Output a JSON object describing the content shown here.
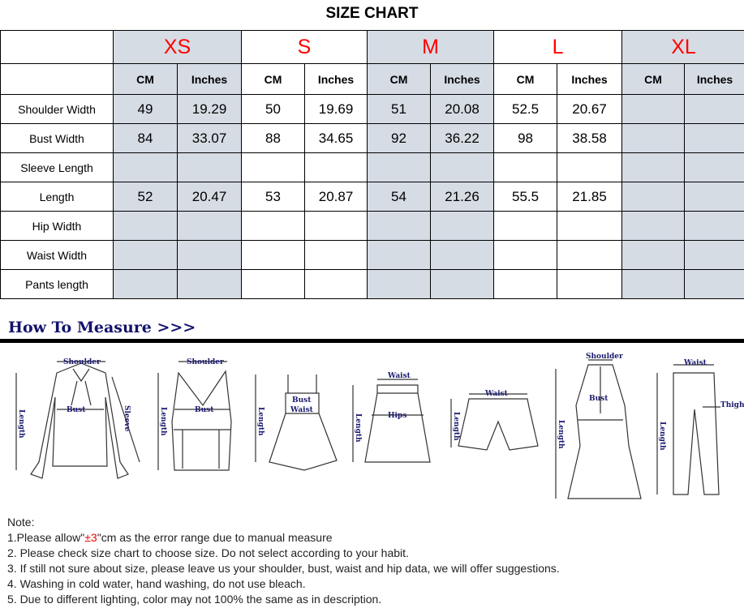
{
  "title": "SIZE CHART",
  "sizes": [
    "XS",
    "S",
    "M",
    "L",
    "XL"
  ],
  "units": [
    "CM",
    "Inches"
  ],
  "rows": [
    {
      "label": "Shoulder Width",
      "values": [
        "49",
        "19.29",
        "50",
        "19.69",
        "51",
        "20.08",
        "52.5",
        "20.67",
        "",
        ""
      ]
    },
    {
      "label": "Bust Width",
      "values": [
        "84",
        "33.07",
        "88",
        "34.65",
        "92",
        "36.22",
        "98",
        "38.58",
        "",
        ""
      ]
    },
    {
      "label": "Sleeve Length",
      "values": [
        "",
        "",
        "",
        "",
        "",
        "",
        "",
        "",
        "",
        ""
      ]
    },
    {
      "label": "Length",
      "values": [
        "52",
        "20.47",
        "53",
        "20.87",
        "54",
        "21.26",
        "55.5",
        "21.85",
        "",
        ""
      ]
    },
    {
      "label": "Hip Width",
      "values": [
        "",
        "",
        "",
        "",
        "",
        "",
        "",
        "",
        "",
        ""
      ]
    },
    {
      "label": "Waist Width",
      "values": [
        "",
        "",
        "",
        "",
        "",
        "",
        "",
        "",
        "",
        ""
      ]
    },
    {
      "label": "Pants length",
      "values": [
        "",
        "",
        "",
        "",
        "",
        "",
        "",
        "",
        "",
        ""
      ]
    }
  ],
  "how_to_measure": "How To Measure >>>",
  "figures": {
    "shirt": {
      "shoulder": "Shoulder",
      "bust": "Bust",
      "sleeve": "Sleeve",
      "length": "Length"
    },
    "top": {
      "shoulder": "Shoulder",
      "bust": "Bust",
      "length": "Length"
    },
    "dress": {
      "bust": "Bust",
      "waist": "Waist",
      "length": "Length"
    },
    "skirt": {
      "waist": "Waist",
      "hips": "Hips",
      "length": "Length"
    },
    "shorts": {
      "waist": "Waist",
      "length": "Length"
    },
    "coat": {
      "shoulder": "Shoulder",
      "bust": "Bust",
      "length": "Length"
    },
    "pants": {
      "waist": "Waist",
      "thigh": "Thigh",
      "length": "Length"
    }
  },
  "notes": {
    "heading": "Note:",
    "n1_pre": "1.Please allow\"",
    "n1_red": "±3",
    "n1_post": "\"cm as the error range due to manual measure",
    "n2": "2. Please check size chart to choose size. Do not select according to your habit.",
    "n3": "3. If still not sure about size, please leave us your shoulder, bust, waist and hip data, we will offer suggestions.",
    "n4": "4. Washing in cold water, hand washing, do not use bleach.",
    "n5": "5. Due to different lighting, color may not 100% the same as in description."
  },
  "colors": {
    "size_label": "#ff0000",
    "shaded_column": "#d6dce4",
    "heading": "#13136b"
  }
}
